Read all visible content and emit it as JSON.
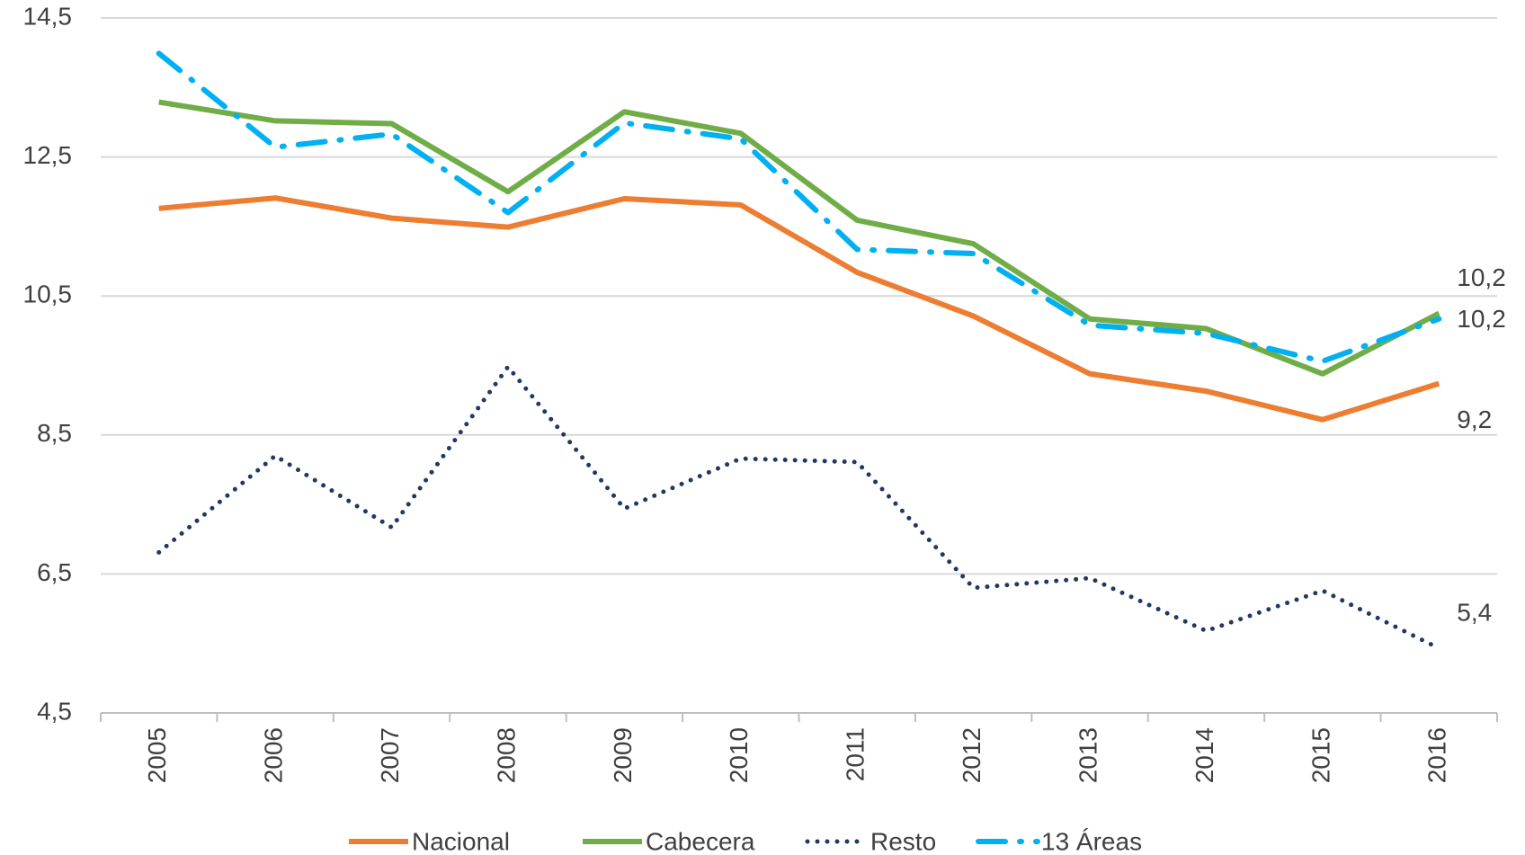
{
  "chart_data": {
    "type": "line",
    "categories": [
      "2005",
      "2006",
      "2007",
      "2008",
      "2009",
      "2010",
      "2011",
      "2012",
      "2013",
      "2014",
      "2015",
      "2016"
    ],
    "series": [
      {
        "name": "Nacional",
        "color": "#ed7d31",
        "style": "solid",
        "values": [
          11.76,
          11.91,
          11.62,
          11.49,
          11.9,
          11.81,
          10.84,
          10.21,
          9.38,
          9.13,
          8.72,
          9.24
        ],
        "value_labels": [
          null,
          null,
          null,
          null,
          null,
          null,
          null,
          null,
          null,
          null,
          null,
          "9,2"
        ]
      },
      {
        "name": "Cabecera",
        "color": "#70ad47",
        "style": "solid",
        "values": [
          13.29,
          13.02,
          12.98,
          12.0,
          13.15,
          12.84,
          11.59,
          11.25,
          10.17,
          10.03,
          9.38,
          10.25
        ],
        "value_labels": [
          null,
          null,
          null,
          null,
          null,
          null,
          null,
          null,
          null,
          null,
          null,
          "10,2"
        ]
      },
      {
        "name": "Resto",
        "color": "#1f3864",
        "style": "dot",
        "values": [
          6.81,
          8.2,
          7.17,
          9.48,
          7.44,
          8.16,
          8.11,
          6.3,
          6.44,
          5.68,
          6.26,
          5.43
        ],
        "value_labels": [
          null,
          null,
          null,
          null,
          null,
          null,
          null,
          null,
          null,
          null,
          null,
          "5,4"
        ]
      },
      {
        "name": "13 Áreas",
        "color": "#00b0f0",
        "style": "dashdot",
        "values": [
          13.99,
          12.64,
          12.83,
          11.7,
          12.99,
          12.76,
          11.17,
          11.11,
          10.08,
          9.96,
          9.56,
          10.17
        ],
        "value_labels": [
          null,
          null,
          null,
          null,
          null,
          null,
          null,
          null,
          null,
          null,
          null,
          "10,2"
        ]
      }
    ],
    "ylim": [
      4.5,
      14.5
    ],
    "yticks": [
      {
        "value": 4.5,
        "label": "4,5"
      },
      {
        "value": 6.5,
        "label": "6,5"
      },
      {
        "value": 8.5,
        "label": "8,5"
      },
      {
        "value": 10.5,
        "label": "10,5"
      },
      {
        "value": 12.5,
        "label": "12,5"
      },
      {
        "value": 14.5,
        "label": "14,5"
      }
    ],
    "grid": true,
    "legend": "bottom"
  }
}
